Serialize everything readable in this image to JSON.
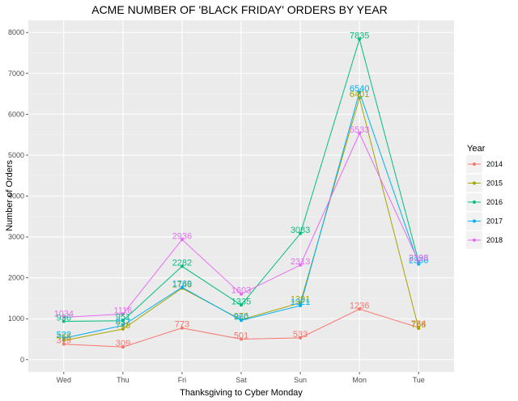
{
  "chart_data": {
    "type": "line",
    "title": "ACME NUMBER OF 'BLACK FRIDAY' ORDERS BY YEAR",
    "xlabel": "Thanksgiving to Cyber Monday",
    "ylabel": "Number of Orders",
    "categories": [
      "Wed",
      "Thu",
      "Fri",
      "Sat",
      "Sun",
      "Mon",
      "Tue"
    ],
    "ylim": [
      -300,
      8300
    ],
    "yticks": [
      0,
      1000,
      2000,
      3000,
      4000,
      5000,
      6000,
      7000,
      8000
    ],
    "grid": true,
    "legend": {
      "title": "Year",
      "position": "right"
    },
    "series": [
      {
        "name": "2014",
        "color": "#F8766D",
        "values": [
          379,
          309,
          773,
          501,
          533,
          1236,
          784
        ]
      },
      {
        "name": "2015",
        "color": "#A3A500",
        "values": [
          468,
          748,
          1746,
          976,
          1391,
          6401,
          766
        ]
      },
      {
        "name": "2016",
        "color": "#00BF7D",
        "values": [
          936,
          951,
          2282,
          1335,
          3083,
          7835,
          2398
        ]
      },
      {
        "name": "2017",
        "color": "#00B0F6",
        "values": [
          522,
          837,
          1769,
          960,
          1321,
          6540,
          2336
        ]
      },
      {
        "name": "2018",
        "color": "#E76BF3",
        "values": [
          1034,
          1116,
          2936,
          1603,
          2313,
          5533,
          2398
        ]
      }
    ]
  }
}
